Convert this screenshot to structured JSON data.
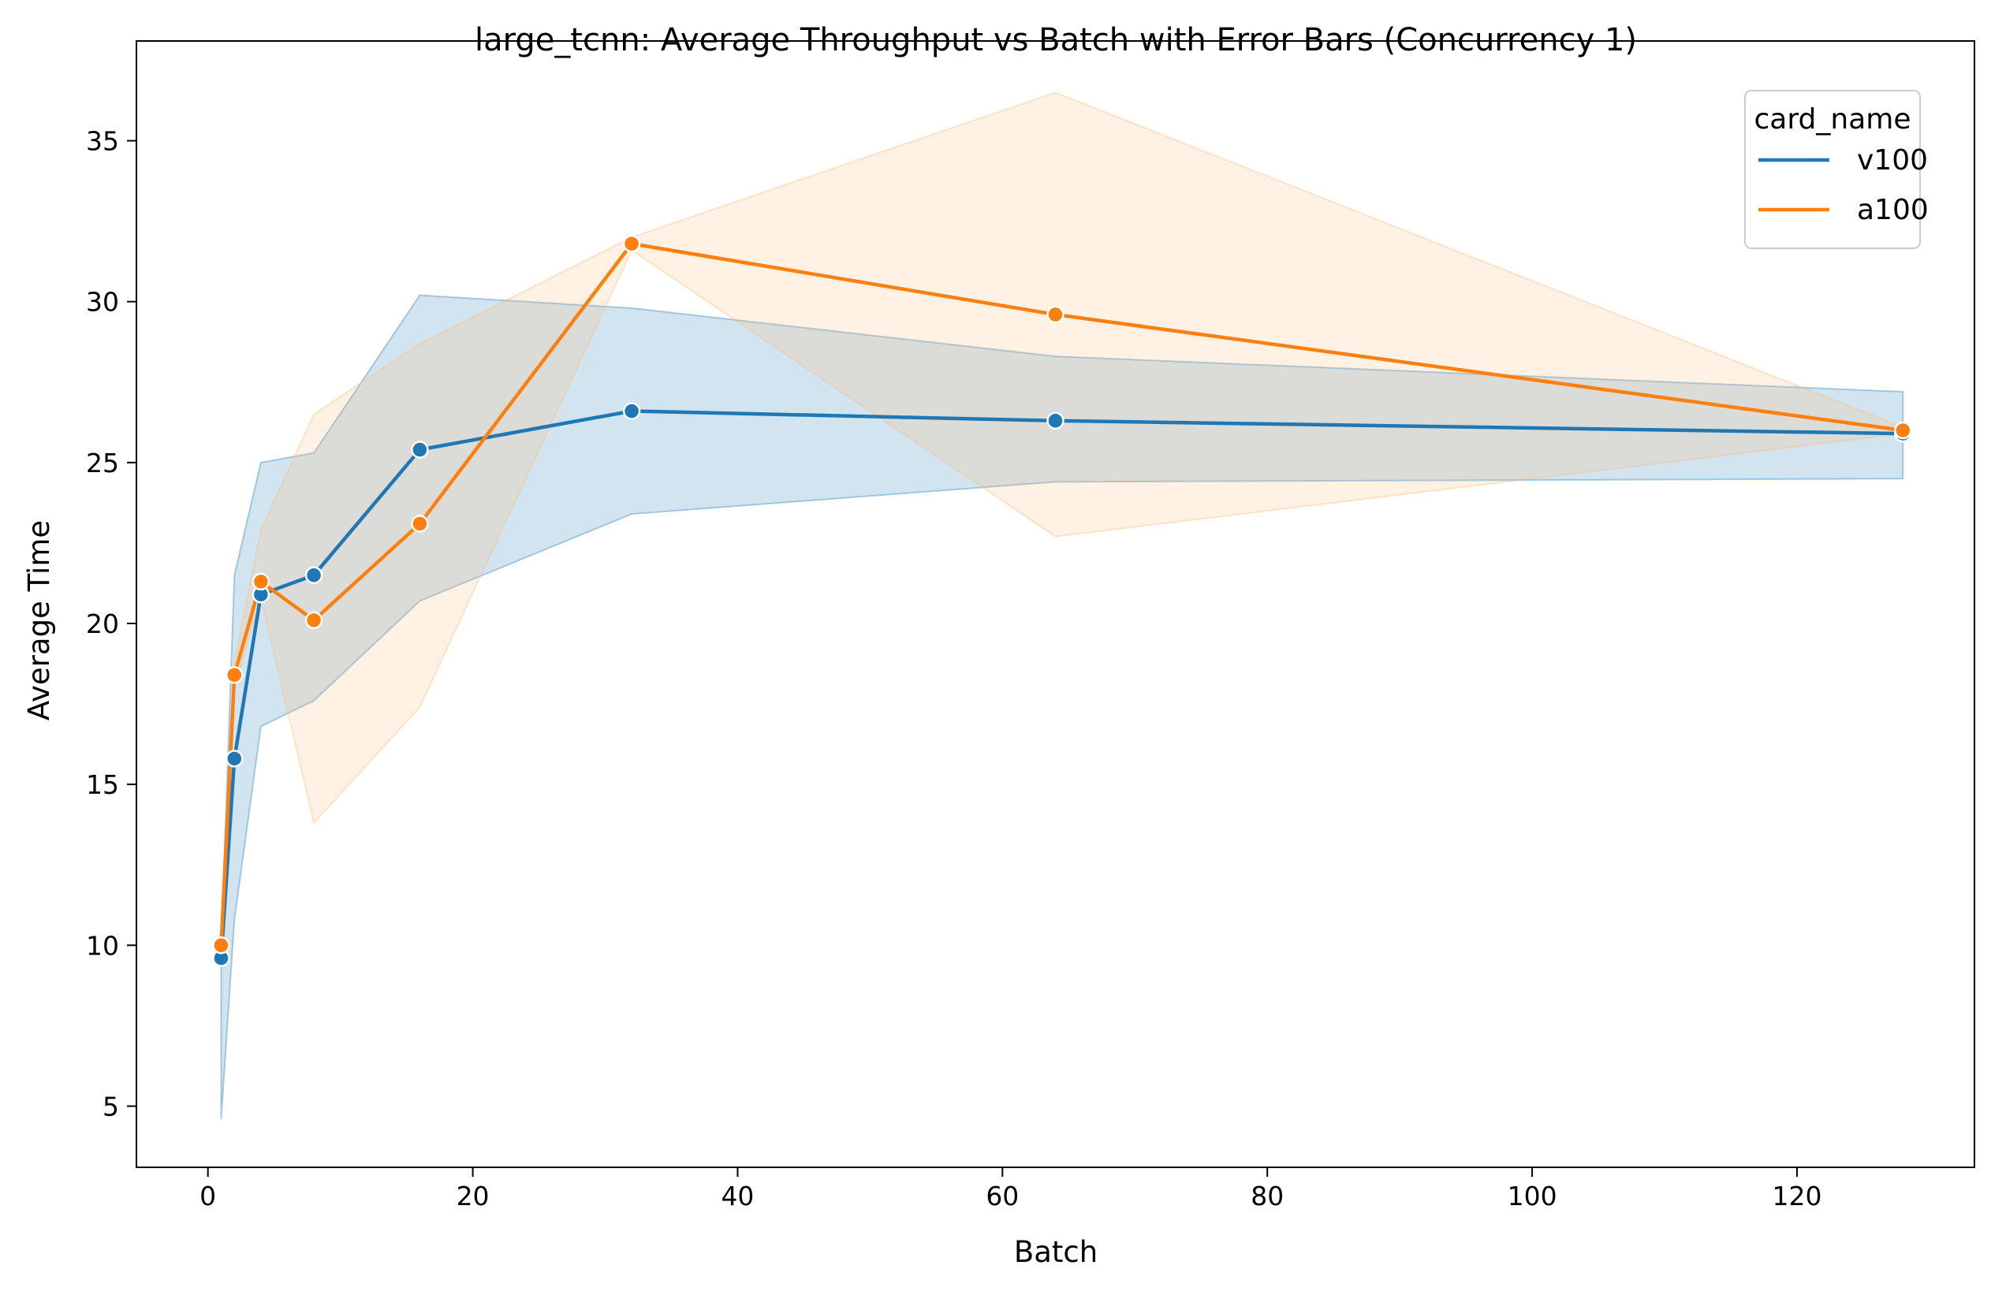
{
  "chart_data": {
    "type": "line",
    "title": "large_tcnn: Average Throughput vs Batch with Error Bars (Concurrency 1)",
    "xlabel": "Batch",
    "ylabel": "Average Time",
    "xlim": [
      -5.4,
      133.4
    ],
    "ylim": [
      3.1,
      38.1
    ],
    "xticks": [
      0,
      20,
      40,
      60,
      80,
      100,
      120
    ],
    "yticks": [
      5,
      10,
      15,
      20,
      25,
      30,
      35
    ],
    "xtick_labels": [
      "0",
      "20",
      "40",
      "60",
      "80",
      "100",
      "120"
    ],
    "ytick_labels": [
      "5",
      "10",
      "15",
      "20",
      "25",
      "30",
      "35"
    ],
    "grid": false,
    "legend": {
      "title": "card_name",
      "placement": "top-right"
    },
    "x": [
      1,
      2,
      4,
      8,
      16,
      32,
      64,
      128
    ],
    "series": [
      {
        "name": "v100",
        "color": "#1f77b4",
        "band_color": "#1f77b4",
        "x": [
          1,
          2,
          4,
          8,
          16,
          32,
          64,
          128
        ],
        "values": [
          9.6,
          15.8,
          20.9,
          21.5,
          25.4,
          26.6,
          26.3,
          25.9
        ],
        "ci_low": [
          4.6,
          10.8,
          16.8,
          17.6,
          20.7,
          23.4,
          24.4,
          24.5
        ],
        "ci_high": [
          10.0,
          21.5,
          25.0,
          25.3,
          30.2,
          29.8,
          28.3,
          27.2
        ]
      },
      {
        "name": "a100",
        "color": "#ff7f0e",
        "band_color": "#ffbb78",
        "x": [
          1,
          2,
          4,
          8,
          16,
          32,
          64,
          128
        ],
        "values": [
          10.0,
          18.4,
          21.3,
          20.1,
          23.1,
          31.8,
          29.6,
          26.0
        ],
        "ci_low": [
          9.8,
          18.0,
          20.8,
          13.8,
          17.4,
          31.6,
          22.7,
          25.9
        ],
        "ci_high": [
          10.2,
          18.8,
          22.9,
          26.5,
          28.7,
          32.0,
          36.5,
          26.1
        ]
      }
    ]
  }
}
